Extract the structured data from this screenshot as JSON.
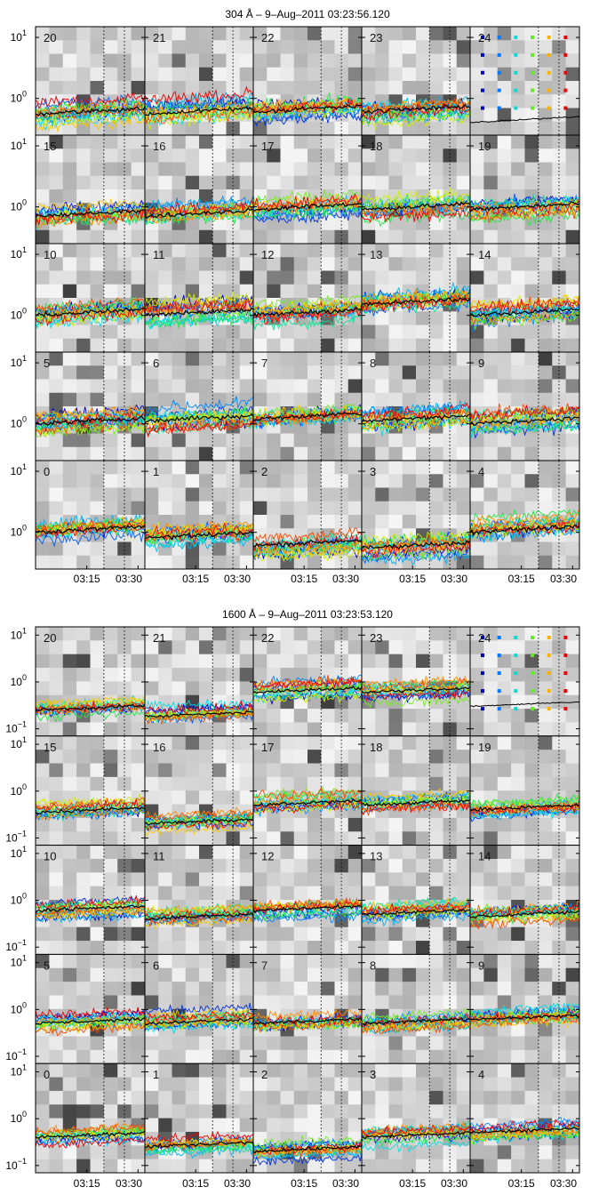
{
  "chart_data": [
    {
      "type": "line",
      "title": "304 Å –  9–Aug–2011 03:23:56.120",
      "wavelength": "304 Å",
      "timestamp": "9–Aug–2011 03:23:56.120",
      "y_scale": "log",
      "ylim": [
        0.25,
        15
      ],
      "y_ticks": [
        {
          "value": 1,
          "base": "10",
          "exp": "0"
        },
        {
          "value": 10,
          "base": "10",
          "exp": "1"
        }
      ],
      "x_ticks": [
        "03:15",
        "03:30"
      ],
      "xlim": [
        "03:00",
        "03:32"
      ],
      "dotted_lines": [
        "03:20",
        "03:26"
      ],
      "grid": false,
      "panels": [
        {
          "id": "20",
          "level": 0.55
        },
        {
          "id": "21",
          "level": 0.55
        },
        {
          "id": "22",
          "level": 0.6
        },
        {
          "id": "23",
          "level": 0.6
        },
        {
          "id": "24",
          "level": 0.4
        },
        {
          "id": "15",
          "level": 0.7
        },
        {
          "id": "16",
          "level": 0.7
        },
        {
          "id": "17",
          "level": 0.9
        },
        {
          "id": "18",
          "level": 0.9
        },
        {
          "id": "19",
          "level": 0.9
        },
        {
          "id": "10",
          "level": 1.0
        },
        {
          "id": "11",
          "level": 1.0
        },
        {
          "id": "12",
          "level": 1.0
        },
        {
          "id": "13",
          "level": 1.5
        },
        {
          "id": "14",
          "level": 1.0
        },
        {
          "id": "5",
          "level": 1.0
        },
        {
          "id": "6",
          "level": 1.1
        },
        {
          "id": "7",
          "level": 1.2
        },
        {
          "id": "8",
          "level": 1.1
        },
        {
          "id": "9",
          "level": 1.0
        },
        {
          "id": "0",
          "level": 1.0
        },
        {
          "id": "1",
          "level": 0.8
        },
        {
          "id": "2",
          "level": 0.6
        },
        {
          "id": "3",
          "level": 0.55
        },
        {
          "id": "4",
          "level": 1.0
        }
      ]
    },
    {
      "type": "line",
      "title": "1600 Å –  9–Aug–2011 03:23:53.120",
      "wavelength": "1600 Å",
      "timestamp": "9–Aug–2011 03:23:53.120",
      "y_scale": "log",
      "ylim": [
        0.07,
        15
      ],
      "y_ticks": [
        {
          "value": 0.1,
          "base": "10",
          "exp": "−1"
        },
        {
          "value": 1,
          "base": "10",
          "exp": "0"
        },
        {
          "value": 10,
          "base": "10",
          "exp": "1"
        }
      ],
      "x_ticks": [
        "03:15",
        "03:30"
      ],
      "xlim": [
        "03:00",
        "03:32"
      ],
      "dotted_lines": [
        "03:20",
        "03:26"
      ],
      "grid": false,
      "panels": [
        {
          "id": "20",
          "level": 0.25
        },
        {
          "id": "21",
          "level": 0.18
        },
        {
          "id": "22",
          "level": 0.6
        },
        {
          "id": "23",
          "level": 0.6
        },
        {
          "id": "24",
          "level": 0.3
        },
        {
          "id": "15",
          "level": 0.35
        },
        {
          "id": "16",
          "level": 0.2
        },
        {
          "id": "17",
          "level": 0.5
        },
        {
          "id": "18",
          "level": 0.5
        },
        {
          "id": "19",
          "level": 0.4
        },
        {
          "id": "10",
          "level": 0.6
        },
        {
          "id": "11",
          "level": 0.4
        },
        {
          "id": "12",
          "level": 0.6
        },
        {
          "id": "13",
          "level": 0.5
        },
        {
          "id": "14",
          "level": 0.45
        },
        {
          "id": "5",
          "level": 0.5
        },
        {
          "id": "6",
          "level": 0.5
        },
        {
          "id": "7",
          "level": 0.5
        },
        {
          "id": "8",
          "level": 0.5
        },
        {
          "id": "9",
          "level": 0.6
        },
        {
          "id": "0",
          "level": 0.4
        },
        {
          "id": "1",
          "level": 0.25
        },
        {
          "id": "2",
          "level": 0.2
        },
        {
          "id": "3",
          "level": 0.4
        },
        {
          "id": "4",
          "level": 0.5
        }
      ]
    }
  ]
}
